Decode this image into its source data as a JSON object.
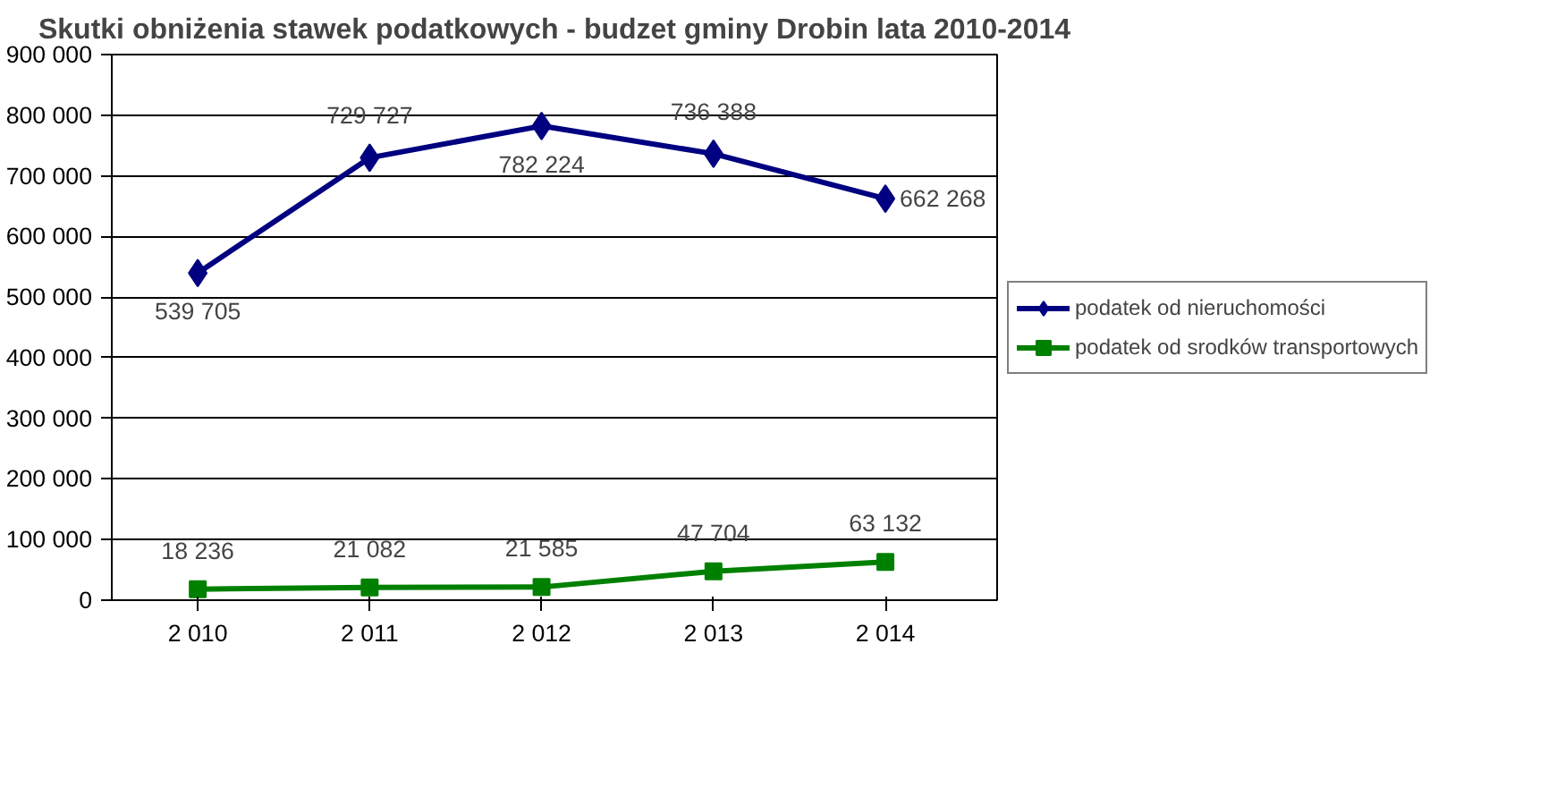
{
  "chart_data": {
    "type": "line",
    "title": "Skutki obniżenia stawek podatkowych - budzet gminy Drobin lata 2010-2014",
    "categories": [
      "2 010",
      "2 011",
      "2 012",
      "2 013",
      "2 014"
    ],
    "series": [
      {
        "name": "podatek od nieruchomości",
        "color": "#000080",
        "marker": "diamond",
        "values": [
          539705,
          729727,
          782224,
          736388,
          662268
        ],
        "value_labels": [
          "539 705",
          "729 727",
          "782 224",
          "736 388",
          "662 268"
        ]
      },
      {
        "name": "podatek od srodków transportowych",
        "color": "#008000",
        "marker": "square",
        "values": [
          18236,
          21082,
          21585,
          47704,
          63132
        ],
        "value_labels": [
          "18 236",
          "21 082",
          "21 585",
          "47 704",
          "63 132"
        ]
      }
    ],
    "ylim": [
      0,
      900000
    ],
    "yticks": [
      {
        "value": 0,
        "label": "0"
      },
      {
        "value": 100000,
        "label": "100 000"
      },
      {
        "value": 200000,
        "label": "200 000"
      },
      {
        "value": 300000,
        "label": "300 000"
      },
      {
        "value": 400000,
        "label": "400 000"
      },
      {
        "value": 500000,
        "label": "500 000"
      },
      {
        "value": 600000,
        "label": "600 000"
      },
      {
        "value": 700000,
        "label": "700 000"
      },
      {
        "value": 800000,
        "label": "800 000"
      },
      {
        "value": 900000,
        "label": "900 000"
      }
    ],
    "grid": "y",
    "legend": "right",
    "line_style": "solid"
  }
}
